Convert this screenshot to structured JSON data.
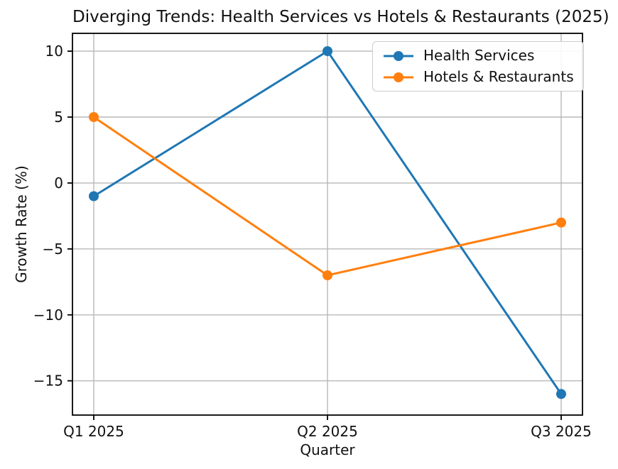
{
  "chart_data": {
    "type": "line",
    "title": "Diverging Trends: Health Services vs Hotels & Restaurants (2025)",
    "xlabel": "Quarter",
    "ylabel": "Growth Rate (%)",
    "categories": [
      "Q1 2025",
      "Q2 2025",
      "Q3 2025"
    ],
    "series": [
      {
        "name": "Health Services",
        "color": "#1f77b4",
        "values": [
          -1,
          10,
          -16
        ]
      },
      {
        "name": "Hotels & Restaurants",
        "color": "#ff7f0e",
        "values": [
          5,
          -7,
          -3
        ]
      }
    ],
    "yticks": [
      10,
      5,
      0,
      -5,
      -10,
      -15
    ],
    "ylim": [
      -17.6,
      11.35
    ],
    "grid": true,
    "legend_position": "upper right",
    "colors": {
      "background": "#ffffff",
      "grid": "#b8b8b8",
      "spine": "#000000",
      "text": "#111111",
      "legend_border": "#cccccc"
    }
  }
}
